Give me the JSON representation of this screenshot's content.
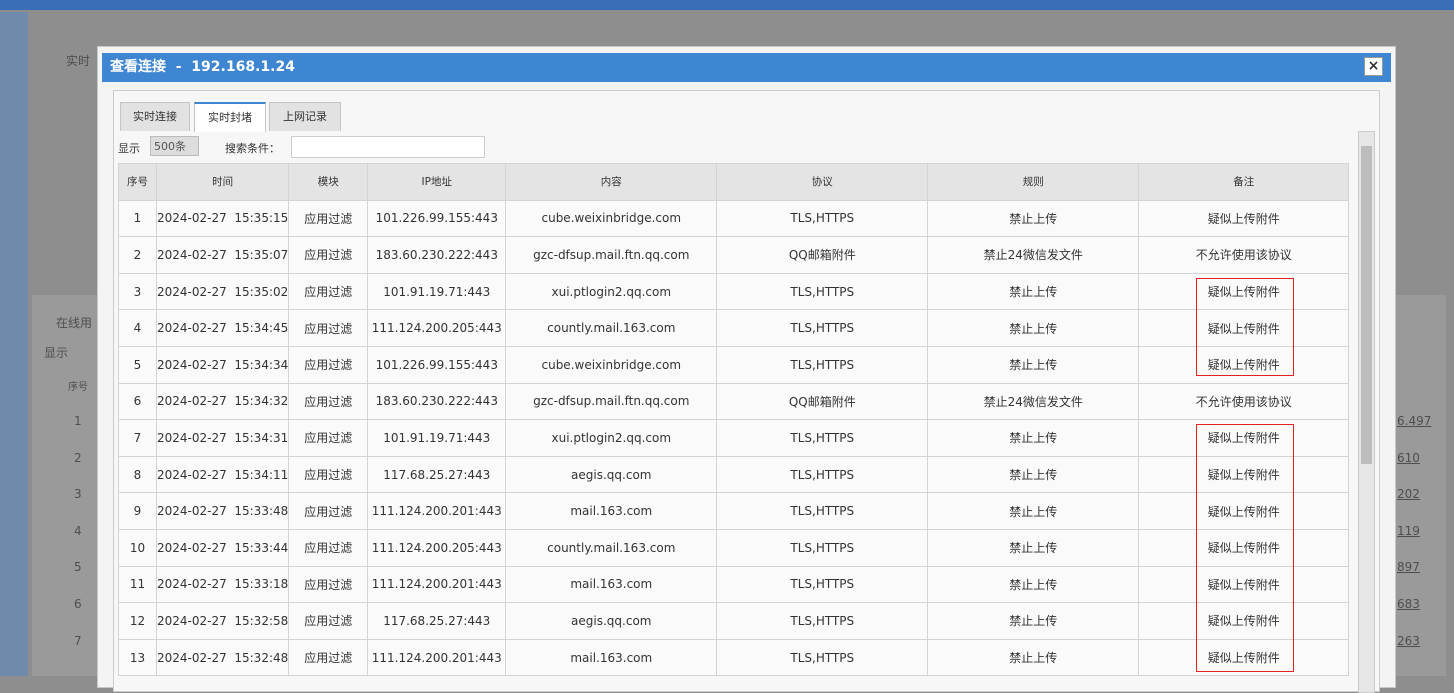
{
  "background": {
    "breadcrumb": "实时",
    "panel_tab": "在线用",
    "show_label": "显示",
    "index_header": "序号",
    "row_numbers": [
      "1",
      "2",
      "3",
      "4",
      "5",
      "6",
      "7"
    ],
    "right_values": [
      "6.497",
      "610",
      "202",
      "119",
      "897",
      "683",
      "263"
    ]
  },
  "dialog": {
    "title": "查看连接  -  192.168.1.24",
    "close": "×",
    "tabs": [
      "实时连接",
      "实时封堵",
      "上网记录"
    ],
    "active_tab": 1,
    "toolbar": {
      "show_label": "显示",
      "page_size": "500条",
      "search_label": "搜索条件："
    }
  },
  "table": {
    "headers": [
      "序号",
      "时间",
      "模块",
      "IP地址",
      "内容",
      "协议",
      "规则",
      "备注"
    ],
    "rows": [
      [
        "1",
        "2024-02-27  15:35:15",
        "应用过滤",
        "101.226.99.155:443",
        "cube.weixinbridge.com",
        "TLS,HTTPS",
        "禁止上传",
        "疑似上传附件"
      ],
      [
        "2",
        "2024-02-27  15:35:07",
        "应用过滤",
        "183.60.230.222:443",
        "gzc-dfsup.mail.ftn.qq.com",
        "QQ邮箱附件",
        "禁止24微信发文件",
        "不允许使用该协议"
      ],
      [
        "3",
        "2024-02-27  15:35:02",
        "应用过滤",
        "101.91.19.71:443",
        "xui.ptlogin2.qq.com",
        "TLS,HTTPS",
        "禁止上传",
        "疑似上传附件"
      ],
      [
        "4",
        "2024-02-27  15:34:45",
        "应用过滤",
        "111.124.200.205:443",
        "countly.mail.163.com",
        "TLS,HTTPS",
        "禁止上传",
        "疑似上传附件"
      ],
      [
        "5",
        "2024-02-27  15:34:34",
        "应用过滤",
        "101.226.99.155:443",
        "cube.weixinbridge.com",
        "TLS,HTTPS",
        "禁止上传",
        "疑似上传附件"
      ],
      [
        "6",
        "2024-02-27  15:34:32",
        "应用过滤",
        "183.60.230.222:443",
        "gzc-dfsup.mail.ftn.qq.com",
        "QQ邮箱附件",
        "禁止24微信发文件",
        "不允许使用该协议"
      ],
      [
        "7",
        "2024-02-27  15:34:31",
        "应用过滤",
        "101.91.19.71:443",
        "xui.ptlogin2.qq.com",
        "TLS,HTTPS",
        "禁止上传",
        "疑似上传附件"
      ],
      [
        "8",
        "2024-02-27  15:34:11",
        "应用过滤",
        "117.68.25.27:443",
        "aegis.qq.com",
        "TLS,HTTPS",
        "禁止上传",
        "疑似上传附件"
      ],
      [
        "9",
        "2024-02-27  15:33:48",
        "应用过滤",
        "111.124.200.201:443",
        "mail.163.com",
        "TLS,HTTPS",
        "禁止上传",
        "疑似上传附件"
      ],
      [
        "10",
        "2024-02-27  15:33:44",
        "应用过滤",
        "111.124.200.205:443",
        "countly.mail.163.com",
        "TLS,HTTPS",
        "禁止上传",
        "疑似上传附件"
      ],
      [
        "11",
        "2024-02-27  15:33:18",
        "应用过滤",
        "111.124.200.201:443",
        "mail.163.com",
        "TLS,HTTPS",
        "禁止上传",
        "疑似上传附件"
      ],
      [
        "12",
        "2024-02-27  15:32:58",
        "应用过滤",
        "117.68.25.27:443",
        "aegis.qq.com",
        "TLS,HTTPS",
        "禁止上传",
        "疑似上传附件"
      ],
      [
        "13",
        "2024-02-27  15:32:48",
        "应用过滤",
        "111.124.200.201:443",
        "mail.163.com",
        "TLS,HTTPS",
        "禁止上传",
        "疑似上传附件"
      ]
    ]
  }
}
